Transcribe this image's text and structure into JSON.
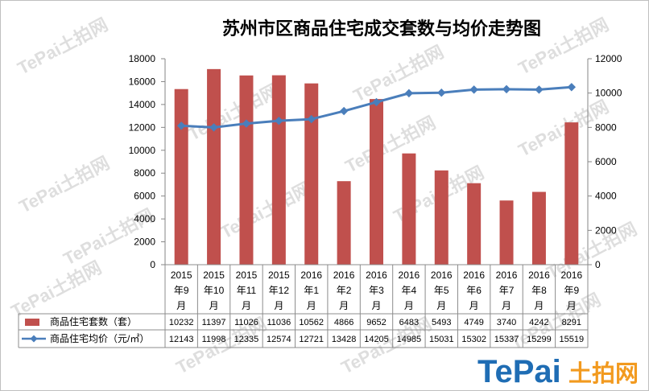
{
  "chart_data": {
    "type": "bar",
    "title": "苏州市区商品住宅成交套数与均价走势图",
    "categories": [
      "2015年9月",
      "2015年10月",
      "2015年11月",
      "2015年12月",
      "2016年1月",
      "2016年2月",
      "2016年3月",
      "2016年4月",
      "2016年5月",
      "2016年6月",
      "2016年7月",
      "2016年8月",
      "2016年9月"
    ],
    "series": [
      {
        "name": "商品住宅套数（套）",
        "type": "bar",
        "axis": "right",
        "color": "#c0504d",
        "values": [
          10232,
          11397,
          11026,
          11036,
          10562,
          4866,
          9652,
          6483,
          5493,
          4749,
          3740,
          4242,
          8291
        ]
      },
      {
        "name": "商品住宅均价（元/㎡）",
        "type": "line",
        "axis": "left",
        "color": "#4a7ebb",
        "marker": "diamond",
        "values": [
          12143,
          11998,
          12335,
          12574,
          12721,
          13428,
          14205,
          14985,
          15031,
          15302,
          15337,
          15299,
          15519
        ]
      }
    ],
    "y_left": {
      "range": [
        0,
        18000
      ],
      "ticks": [
        18000,
        16000,
        14000,
        12000,
        10000,
        8000,
        6000,
        4000,
        2000,
        0
      ]
    },
    "y_right": {
      "range": [
        0,
        12000
      ],
      "ticks": [
        12000,
        10000,
        8000,
        6000,
        4000,
        2000,
        0
      ]
    },
    "grid": false,
    "legend": "bottom-left",
    "data_table": true
  },
  "watermark": {
    "text": "TePai土拍网"
  },
  "logo": {
    "brand": "TePai",
    "cn": "土拍网",
    "brand_color": "#1f6db4",
    "cn_color": "#f29a1f"
  }
}
